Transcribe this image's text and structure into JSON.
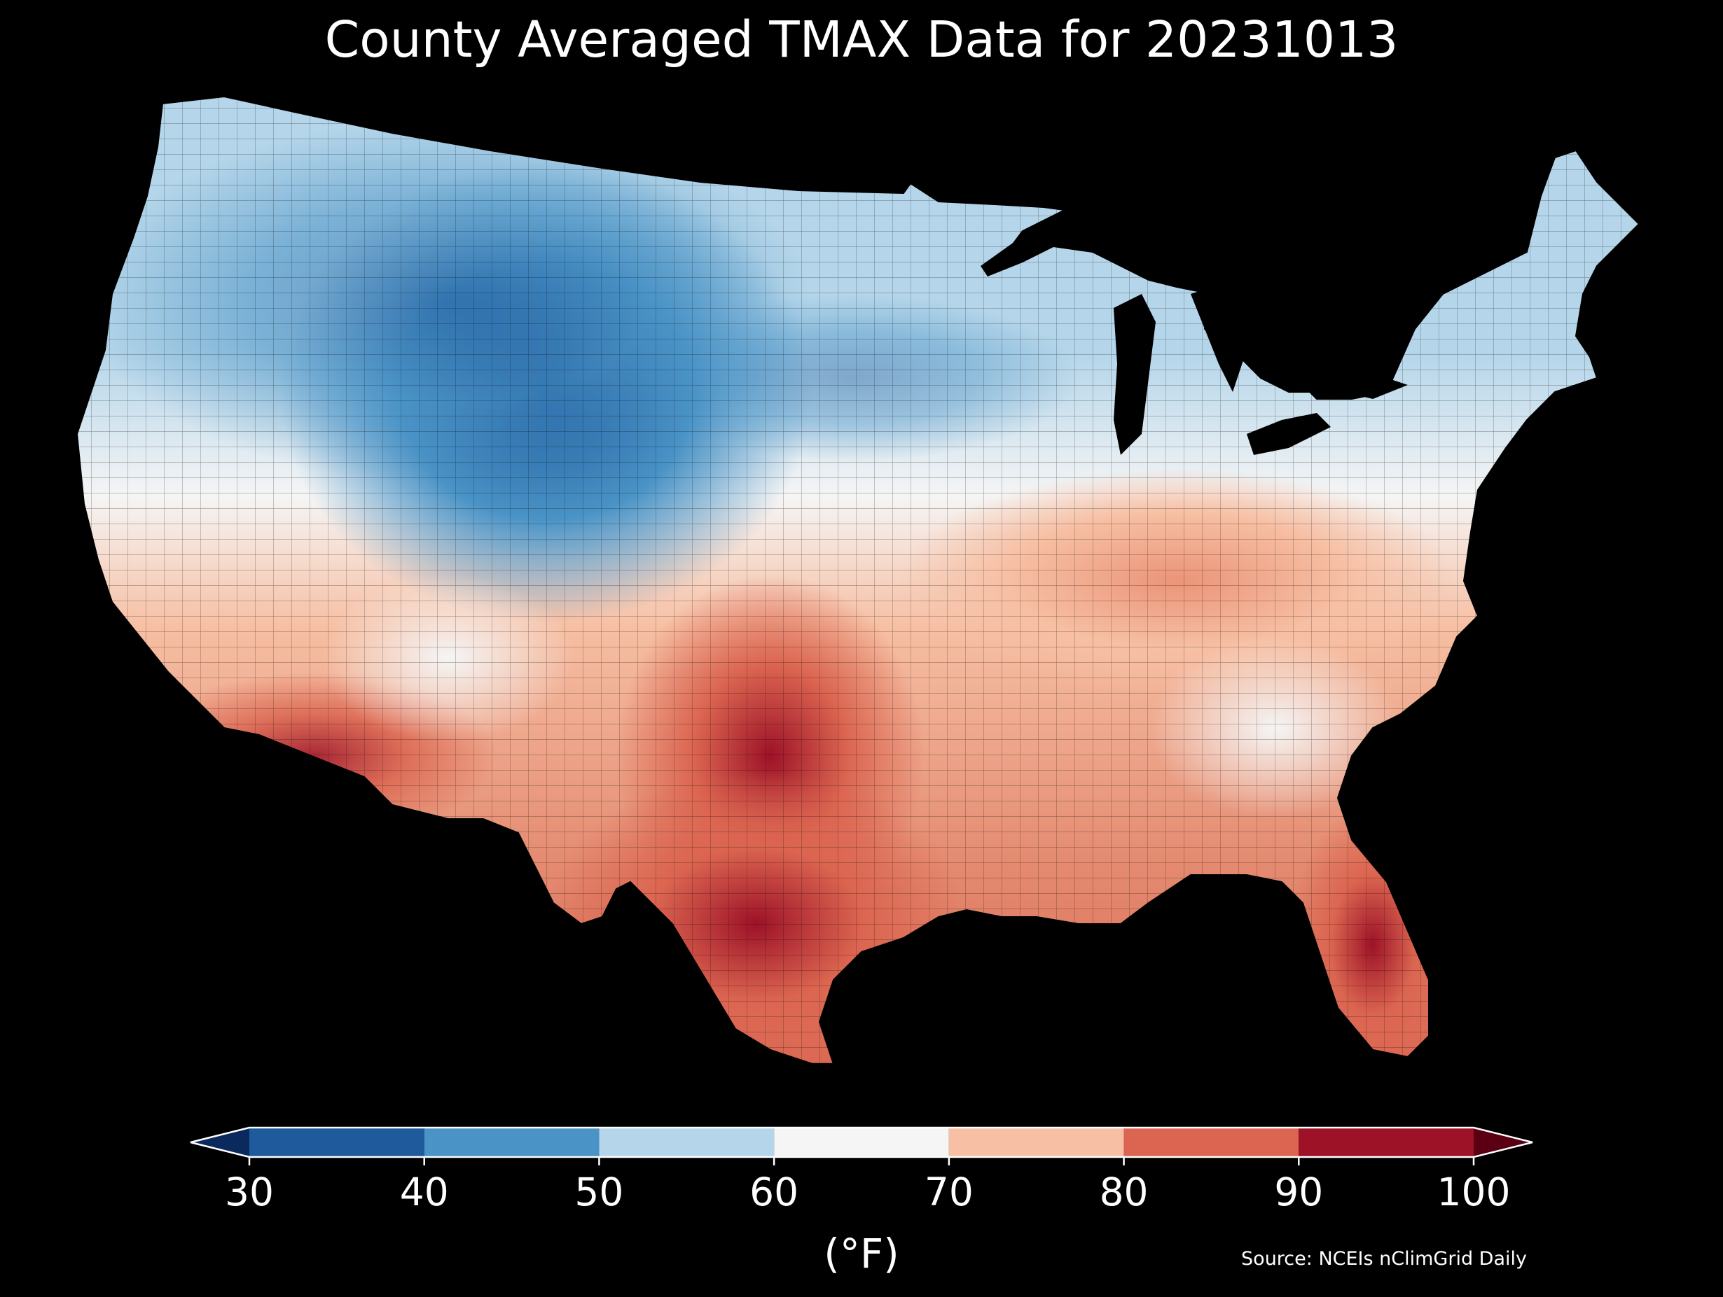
{
  "title": "County Averaged TMAX Data for 20231013",
  "colorbar": {
    "unit": "(°F)",
    "ticks": [
      "30",
      "40",
      "50",
      "60",
      "70",
      "80",
      "90",
      "100"
    ],
    "under_color": "#0a2a5e",
    "over_color": "#5a0012",
    "bins": [
      {
        "from": 30,
        "to": 40,
        "color": "#1e5a9c"
      },
      {
        "from": 40,
        "to": 50,
        "color": "#4a93c6"
      },
      {
        "from": 50,
        "to": 60,
        "color": "#b5d6ea"
      },
      {
        "from": 60,
        "to": 70,
        "color": "#f5f5f5"
      },
      {
        "from": 70,
        "to": 80,
        "color": "#f7bfa3"
      },
      {
        "from": 80,
        "to": 90,
        "color": "#db6550"
      },
      {
        "from": 90,
        "to": 100,
        "color": "#9d1227"
      }
    ]
  },
  "source": "Source: NCEIs nClimGrid Daily",
  "map": {
    "region": "Contiguous United States",
    "variable": "TMAX",
    "boundaries": "county",
    "background_color": "#000000"
  }
}
